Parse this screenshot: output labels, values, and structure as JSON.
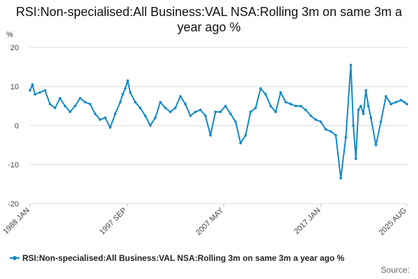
{
  "title": "RSI:Non-specialised:All Business:VAL NSA:Rolling 3m on same 3m a year ago %",
  "source_label": "Source:",
  "colors": {
    "series": "#1188c7",
    "grid": "#d8d8d8",
    "axis": "#cccccc",
    "text": "#111111"
  },
  "chart_data": {
    "type": "line",
    "title": "RSI:Non-specialised:All Business:VAL NSA:Rolling 3m on same 3m a year ago %",
    "ylabel": "%",
    "xlabel": "",
    "ylim": [
      -20,
      20
    ],
    "yticks": [
      -20,
      -10,
      0,
      10,
      20
    ],
    "grid": true,
    "legend_position": "bottom-left",
    "x_tick_labels": [
      {
        "label": "1988 JAN",
        "t": 1988.0
      },
      {
        "label": "1997 SEP",
        "t": 1997.667
      },
      {
        "label": "2007 MAY",
        "t": 2007.333
      },
      {
        "label": "2017 JAN",
        "t": 2017.0
      },
      {
        "label": "2025 AUG",
        "t": 2025.583
      }
    ],
    "series": [
      {
        "name": "RSI:Non-specialised:All Business:VAL NSA:Rolling 3m on same 3m a year ago %",
        "x": [
          1988.0,
          1988.25,
          1988.5,
          1989.0,
          1989.5,
          1990.0,
          1990.5,
          1991.0,
          1991.5,
          1992.0,
          1992.5,
          1993.0,
          1993.5,
          1994.0,
          1994.5,
          1995.0,
          1995.5,
          1996.0,
          1996.5,
          1997.0,
          1997.25,
          1997.5,
          1997.75,
          1998.0,
          1998.5,
          1999.0,
          1999.5,
          2000.0,
          2000.5,
          2001.0,
          2001.5,
          2002.0,
          2002.5,
          2003.0,
          2003.5,
          2004.0,
          2004.5,
          2005.0,
          2005.5,
          2006.0,
          2006.5,
          2007.0,
          2007.5,
          2008.0,
          2008.5,
          2009.0,
          2009.5,
          2010.0,
          2010.5,
          2011.0,
          2011.5,
          2012.0,
          2012.5,
          2013.0,
          2013.5,
          2014.0,
          2014.5,
          2015.0,
          2015.5,
          2016.0,
          2016.5,
          2017.0,
          2017.5,
          2018.0,
          2018.5,
          2019.0,
          2019.5,
          2020.0,
          2020.25,
          2020.5,
          2020.75,
          2021.0,
          2021.25,
          2021.5,
          2021.75,
          2022.0,
          2022.5,
          2023.0,
          2023.5,
          2024.0,
          2024.5,
          2025.0,
          2025.33,
          2025.583
        ],
        "values": [
          9.0,
          10.5,
          8.0,
          8.5,
          9.0,
          5.5,
          4.5,
          7.0,
          5.0,
          3.5,
          5.0,
          7.0,
          6.0,
          5.5,
          3.0,
          1.5,
          2.0,
          -0.5,
          3.0,
          6.0,
          8.0,
          9.5,
          11.5,
          8.5,
          6.0,
          4.5,
          2.5,
          0.0,
          2.0,
          6.0,
          4.5,
          3.5,
          4.5,
          7.5,
          5.5,
          2.5,
          3.5,
          4.0,
          2.5,
          -2.5,
          3.5,
          3.5,
          5.0,
          3.0,
          1.0,
          -4.5,
          -2.5,
          3.5,
          4.5,
          9.5,
          8.0,
          5.0,
          3.5,
          8.5,
          6.0,
          5.5,
          5.0,
          5.0,
          4.0,
          2.5,
          1.5,
          1.0,
          -1.0,
          -1.5,
          -2.5,
          -13.5,
          -3.0,
          15.5,
          0.0,
          -8.5,
          4.0,
          5.0,
          3.0,
          9.0,
          5.0,
          2.0,
          -5.0,
          1.0,
          7.5,
          5.5,
          6.0,
          6.5,
          6.0,
          5.5
        ]
      }
    ]
  }
}
